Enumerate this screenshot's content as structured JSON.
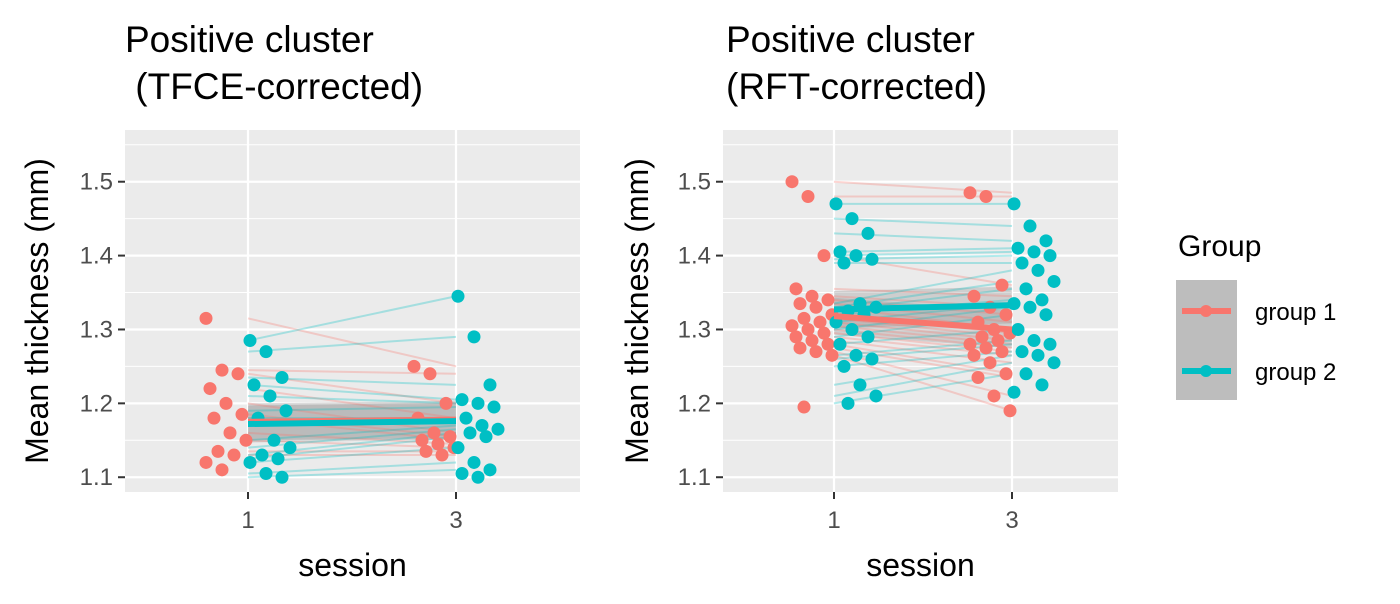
{
  "chart_data": [
    {
      "type": "scatter",
      "title": [
        "Positive cluster",
        " (TFCE-corrected)"
      ],
      "xlabel": "session",
      "ylabel": "Mean thickness (mm)",
      "x_ticks": [
        "1",
        "3"
      ],
      "y_ticks": [
        1.1,
        1.2,
        1.3,
        1.4,
        1.5
      ],
      "ylim": [
        1.08,
        1.57
      ],
      "grid": true,
      "series": [
        {
          "name": "group 1",
          "color": "#F8766D",
          "session1": [
            1.315,
            1.245,
            1.24,
            1.22,
            1.2,
            1.185,
            1.18,
            1.16,
            1.15,
            1.135,
            1.13,
            1.12,
            1.11
          ],
          "session3": [
            1.25,
            1.24,
            1.2,
            1.18,
            1.16,
            1.155,
            1.15,
            1.145,
            1.14,
            1.135,
            1.13
          ],
          "mean": [
            1.175,
            1.178
          ]
        },
        {
          "name": "group 2",
          "color": "#00BFC4",
          "session1": [
            1.285,
            1.27,
            1.235,
            1.225,
            1.21,
            1.19,
            1.18,
            1.15,
            1.14,
            1.13,
            1.125,
            1.12,
            1.105,
            1.1
          ],
          "session3": [
            1.345,
            1.29,
            1.225,
            1.205,
            1.2,
            1.195,
            1.18,
            1.17,
            1.165,
            1.16,
            1.155,
            1.14,
            1.12,
            1.11,
            1.105,
            1.1
          ],
          "mean": [
            1.172,
            1.176
          ]
        }
      ]
    },
    {
      "type": "scatter",
      "title": [
        "Positive cluster",
        "(RFT-corrected)"
      ],
      "xlabel": "session",
      "ylabel": "Mean thickness (mm)",
      "x_ticks": [
        "1",
        "3"
      ],
      "y_ticks": [
        1.1,
        1.2,
        1.3,
        1.4,
        1.5
      ],
      "ylim": [
        1.08,
        1.57
      ],
      "grid": true,
      "series": [
        {
          "name": "group 1",
          "color": "#F8766D",
          "session1": [
            1.5,
            1.48,
            1.4,
            1.355,
            1.345,
            1.34,
            1.335,
            1.33,
            1.32,
            1.315,
            1.31,
            1.305,
            1.3,
            1.295,
            1.29,
            1.285,
            1.28,
            1.275,
            1.27,
            1.265,
            1.195
          ],
          "session3": [
            1.485,
            1.48,
            1.36,
            1.345,
            1.33,
            1.32,
            1.31,
            1.3,
            1.295,
            1.29,
            1.285,
            1.28,
            1.275,
            1.27,
            1.265,
            1.255,
            1.24,
            1.235,
            1.21,
            1.19
          ],
          "mean": [
            1.318,
            1.3
          ]
        },
        {
          "name": "group 2",
          "color": "#00BFC4",
          "session1": [
            1.47,
            1.45,
            1.43,
            1.405,
            1.4,
            1.395,
            1.39,
            1.335,
            1.33,
            1.325,
            1.32,
            1.31,
            1.3,
            1.29,
            1.28,
            1.265,
            1.26,
            1.25,
            1.225,
            1.21,
            1.2
          ],
          "session3": [
            1.47,
            1.44,
            1.42,
            1.41,
            1.405,
            1.4,
            1.39,
            1.38,
            1.365,
            1.355,
            1.34,
            1.335,
            1.33,
            1.32,
            1.3,
            1.285,
            1.28,
            1.27,
            1.265,
            1.255,
            1.24,
            1.225,
            1.215
          ],
          "mean": [
            1.327,
            1.333
          ]
        }
      ]
    }
  ],
  "legend": {
    "title": "Group",
    "items": [
      {
        "label": "group 1",
        "color": "#F8766D"
      },
      {
        "label": "group 2",
        "color": "#00BFC4"
      }
    ]
  }
}
